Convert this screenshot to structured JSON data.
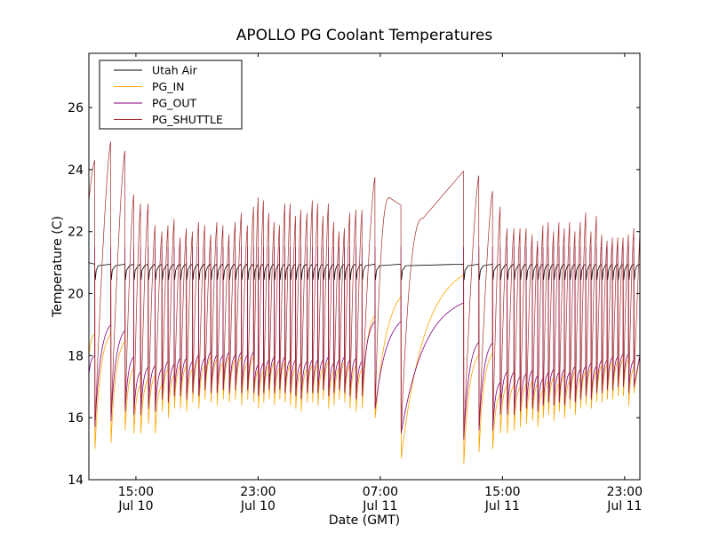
{
  "chart_data": {
    "type": "line",
    "title": "APOLLO PG Coolant Temperatures",
    "xlabel": "Date (GMT)",
    "ylabel": "Temperature (C)",
    "x_unit": "hours since Jul 10 00:00 GMT",
    "xlim": [
      11.92,
      48.0
    ],
    "ylim": [
      14,
      27.75
    ],
    "grid": false,
    "legend_position": "top-left",
    "y_ticks": [
      14,
      16,
      18,
      20,
      22,
      24,
      26
    ],
    "y_tick_labels": [
      "14",
      "16",
      "18",
      "20",
      "22",
      "24",
      "26"
    ],
    "x_ticks": [
      {
        "value": 15,
        "line1": "15:00",
        "line2": "Jul 10"
      },
      {
        "value": 23,
        "line1": "23:00",
        "line2": "Jul 10"
      },
      {
        "value": 31,
        "line1": "07:00",
        "line2": "Jul 11"
      },
      {
        "value": 39,
        "line1": "15:00",
        "line2": "Jul 11"
      },
      {
        "value": 47,
        "line1": "23:00",
        "line2": "Jul 11"
      }
    ],
    "series": [
      {
        "name": "Utah Air",
        "color": "#000000",
        "baseline": 20.95,
        "dip": 20.45
      },
      {
        "name": "PG_IN",
        "color": "#ffa500"
      },
      {
        "name": "PG_OUT",
        "color": "#800080"
      },
      {
        "name": "PG_SHUTTLE",
        "color": "#a52a2a"
      }
    ],
    "cycles_description": "Each cycle: reset time t (h), shuttle peak reached just before reset, PG_IN minimum and PG_OUT minimum just after reset",
    "cycles": [
      {
        "t": 12.3,
        "shuttle_peak": 24.3,
        "in_min": 15.0,
        "out_min": 15.7
      },
      {
        "t": 13.35,
        "shuttle_peak": 24.9,
        "in_min": 15.2,
        "out_min": 15.9
      },
      {
        "t": 14.28,
        "shuttle_peak": 24.6,
        "in_min": 15.6,
        "out_min": 16.2
      },
      {
        "t": 14.85,
        "shuttle_peak": 23.2,
        "in_min": 15.5,
        "out_min": 16.1
      },
      {
        "t": 15.3,
        "shuttle_peak": 22.9,
        "in_min": 15.5,
        "out_min": 16.1
      },
      {
        "t": 15.8,
        "shuttle_peak": 22.9,
        "in_min": 15.8,
        "out_min": 16.3
      },
      {
        "t": 16.25,
        "shuttle_peak": 22.2,
        "in_min": 15.5,
        "out_min": 16.2
      },
      {
        "t": 16.7,
        "shuttle_peak": 22.0,
        "in_min": 16.2,
        "out_min": 16.6
      },
      {
        "t": 17.1,
        "shuttle_peak": 22.2,
        "in_min": 16.0,
        "out_min": 16.5
      },
      {
        "t": 17.5,
        "shuttle_peak": 22.4,
        "in_min": 16.3,
        "out_min": 16.7
      },
      {
        "t": 17.9,
        "shuttle_peak": 21.8,
        "in_min": 16.3,
        "out_min": 16.7
      },
      {
        "t": 18.3,
        "shuttle_peak": 22.1,
        "in_min": 16.2,
        "out_min": 16.6
      },
      {
        "t": 18.7,
        "shuttle_peak": 22.0,
        "in_min": 16.5,
        "out_min": 16.8
      },
      {
        "t": 19.1,
        "shuttle_peak": 22.3,
        "in_min": 16.3,
        "out_min": 16.7
      },
      {
        "t": 19.5,
        "shuttle_peak": 22.2,
        "in_min": 16.6,
        "out_min": 16.9
      },
      {
        "t": 19.9,
        "shuttle_peak": 21.9,
        "in_min": 16.5,
        "out_min": 16.8
      },
      {
        "t": 20.3,
        "shuttle_peak": 22.3,
        "in_min": 16.4,
        "out_min": 16.8
      },
      {
        "t": 20.7,
        "shuttle_peak": 22.2,
        "in_min": 16.6,
        "out_min": 16.9
      },
      {
        "t": 21.1,
        "shuttle_peak": 21.9,
        "in_min": 16.5,
        "out_min": 16.8
      },
      {
        "t": 21.5,
        "shuttle_peak": 22.3,
        "in_min": 16.6,
        "out_min": 16.9
      },
      {
        "t": 21.9,
        "shuttle_peak": 22.6,
        "in_min": 16.4,
        "out_min": 16.8
      },
      {
        "t": 22.3,
        "shuttle_peak": 22.2,
        "in_min": 16.6,
        "out_min": 16.9
      },
      {
        "t": 22.7,
        "shuttle_peak": 22.8,
        "in_min": 16.5,
        "out_min": 16.8
      },
      {
        "t": 23.0,
        "shuttle_peak": 23.1,
        "in_min": 16.3,
        "out_min": 16.7
      },
      {
        "t": 23.35,
        "shuttle_peak": 23.0,
        "in_min": 16.5,
        "out_min": 16.8
      },
      {
        "t": 23.7,
        "shuttle_peak": 22.6,
        "in_min": 16.6,
        "out_min": 16.9
      },
      {
        "t": 24.05,
        "shuttle_peak": 22.3,
        "in_min": 16.4,
        "out_min": 16.8
      },
      {
        "t": 24.4,
        "shuttle_peak": 22.2,
        "in_min": 16.6,
        "out_min": 16.9
      },
      {
        "t": 24.75,
        "shuttle_peak": 22.9,
        "in_min": 16.5,
        "out_min": 16.8
      },
      {
        "t": 25.1,
        "shuttle_peak": 22.9,
        "in_min": 16.4,
        "out_min": 16.8
      },
      {
        "t": 25.45,
        "shuttle_peak": 22.5,
        "in_min": 16.3,
        "out_min": 16.7
      },
      {
        "t": 25.8,
        "shuttle_peak": 22.7,
        "in_min": 16.2,
        "out_min": 16.6
      },
      {
        "t": 26.2,
        "shuttle_peak": 22.6,
        "in_min": 16.5,
        "out_min": 16.8
      },
      {
        "t": 26.55,
        "shuttle_peak": 23.0,
        "in_min": 16.5,
        "out_min": 16.8
      },
      {
        "t": 26.9,
        "shuttle_peak": 22.9,
        "in_min": 16.4,
        "out_min": 16.8
      },
      {
        "t": 27.25,
        "shuttle_peak": 22.5,
        "in_min": 16.6,
        "out_min": 16.9
      },
      {
        "t": 27.6,
        "shuttle_peak": 22.9,
        "in_min": 16.3,
        "out_min": 16.7
      },
      {
        "t": 27.95,
        "shuttle_peak": 22.3,
        "in_min": 16.4,
        "out_min": 16.8
      },
      {
        "t": 28.3,
        "shuttle_peak": 22.0,
        "in_min": 16.6,
        "out_min": 16.9
      },
      {
        "t": 28.65,
        "shuttle_peak": 22.1,
        "in_min": 16.5,
        "out_min": 16.8
      },
      {
        "t": 29.0,
        "shuttle_peak": 22.6,
        "in_min": 16.3,
        "out_min": 16.7
      },
      {
        "t": 29.4,
        "shuttle_peak": 22.7,
        "in_min": 16.2,
        "out_min": 16.6
      },
      {
        "t": 29.8,
        "shuttle_peak": 22.7,
        "in_min": 16.3,
        "out_min": 16.7
      },
      {
        "t": 30.65,
        "shuttle_peak": 23.75,
        "in_min": 16.0,
        "out_min": 16.3
      },
      {
        "t": 32.35,
        "shuttle_peak": 23.1,
        "in_min": 14.7,
        "out_min": 15.5
      },
      {
        "t": 36.45,
        "shuttle_peak": 23.95,
        "in_min": 14.5,
        "out_min": 15.3
      },
      {
        "t": 37.45,
        "shuttle_peak": 23.8,
        "in_min": 14.9,
        "out_min": 15.6
      },
      {
        "t": 38.35,
        "shuttle_peak": 23.3,
        "in_min": 15.0,
        "out_min": 15.6
      },
      {
        "t": 38.85,
        "shuttle_peak": 22.8,
        "in_min": 15.5,
        "out_min": 16.1
      },
      {
        "t": 39.3,
        "shuttle_peak": 22.1,
        "in_min": 15.5,
        "out_min": 16.1
      },
      {
        "t": 39.75,
        "shuttle_peak": 22.1,
        "in_min": 15.6,
        "out_min": 16.1
      },
      {
        "t": 40.15,
        "shuttle_peak": 22.1,
        "in_min": 15.7,
        "out_min": 16.2
      },
      {
        "t": 40.55,
        "shuttle_peak": 22.1,
        "in_min": 15.8,
        "out_min": 16.3
      },
      {
        "t": 40.95,
        "shuttle_peak": 21.9,
        "in_min": 15.9,
        "out_min": 16.3
      },
      {
        "t": 41.3,
        "shuttle_peak": 21.7,
        "in_min": 15.7,
        "out_min": 16.2
      },
      {
        "t": 41.65,
        "shuttle_peak": 22.2,
        "in_min": 16.0,
        "out_min": 16.4
      },
      {
        "t": 42.0,
        "shuttle_peak": 22.3,
        "in_min": 16.1,
        "out_min": 16.5
      },
      {
        "t": 42.35,
        "shuttle_peak": 22.0,
        "in_min": 15.9,
        "out_min": 16.4
      },
      {
        "t": 42.7,
        "shuttle_peak": 22.3,
        "in_min": 16.2,
        "out_min": 16.5
      },
      {
        "t": 43.05,
        "shuttle_peak": 22.1,
        "in_min": 16.0,
        "out_min": 16.4
      },
      {
        "t": 43.4,
        "shuttle_peak": 22.3,
        "in_min": 16.3,
        "out_min": 16.6
      },
      {
        "t": 43.75,
        "shuttle_peak": 22.0,
        "in_min": 16.1,
        "out_min": 16.5
      },
      {
        "t": 44.1,
        "shuttle_peak": 22.3,
        "in_min": 16.3,
        "out_min": 16.6
      },
      {
        "t": 44.45,
        "shuttle_peak": 22.6,
        "in_min": 16.4,
        "out_min": 16.7
      },
      {
        "t": 44.8,
        "shuttle_peak": 22.0,
        "in_min": 16.3,
        "out_min": 16.6
      },
      {
        "t": 45.15,
        "shuttle_peak": 22.5,
        "in_min": 16.5,
        "out_min": 16.8
      },
      {
        "t": 45.5,
        "shuttle_peak": 21.9,
        "in_min": 16.5,
        "out_min": 16.8
      },
      {
        "t": 45.85,
        "shuttle_peak": 21.7,
        "in_min": 16.6,
        "out_min": 16.9
      },
      {
        "t": 46.2,
        "shuttle_peak": 21.8,
        "in_min": 16.6,
        "out_min": 16.9
      },
      {
        "t": 46.55,
        "shuttle_peak": 21.8,
        "in_min": 16.7,
        "out_min": 17.0
      },
      {
        "t": 46.9,
        "shuttle_peak": 21.8,
        "in_min": 16.7,
        "out_min": 17.0
      },
      {
        "t": 47.25,
        "shuttle_peak": 21.9,
        "in_min": 16.4,
        "out_min": 16.8
      },
      {
        "t": 47.6,
        "shuttle_peak": 22.1,
        "in_min": 16.8,
        "out_min": 17.0
      }
    ],
    "long_events": [
      {
        "start": 30.65,
        "end": 32.35,
        "shuttle_plateau": 23.1,
        "in_end": 19.9,
        "out_end": 19.1
      },
      {
        "start": 32.35,
        "end": 36.45,
        "shuttle_end": 23.95,
        "in_end": 20.6,
        "out_end": 19.7
      }
    ]
  }
}
